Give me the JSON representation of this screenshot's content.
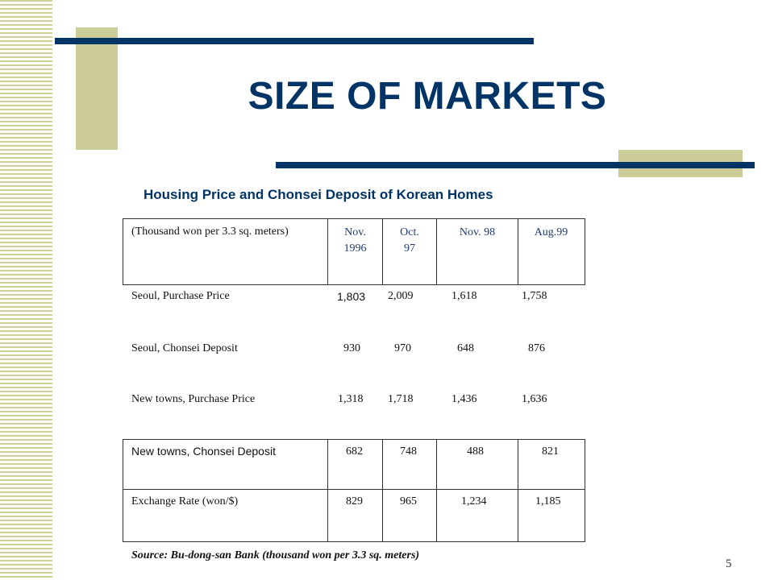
{
  "slide": {
    "title": "SIZE OF MARKETS",
    "subtitle": "Housing Price and Chonsei Deposit of Korean Homes",
    "page_number": "5",
    "source": "Source:  Bu-dong-san Bank (thousand won per 3.3 sq. meters)"
  },
  "table": {
    "header": {
      "unit": "(Thousand won per 3.3 sq. meters)",
      "col1": [
        "Nov.",
        "1996"
      ],
      "col2": [
        "Oct.",
        "97"
      ],
      "col3": "Nov. 98",
      "col4": "Aug.99"
    },
    "rows": [
      {
        "label": "Seoul, Purchase Price",
        "values": [
          "1,803",
          "2,009",
          "1,618",
          "1,758"
        ]
      },
      {
        "label": "Seoul, Chonsei Deposit",
        "values": [
          "930",
          "970",
          "648",
          "876"
        ]
      },
      {
        "label": "New towns, Purchase Price",
        "values": [
          "1,318",
          "1,718",
          "1,436",
          "1,636"
        ]
      },
      {
        "label": "New towns, Chonsei Deposit",
        "values": [
          "682",
          "748",
          "488",
          "821"
        ]
      },
      {
        "label": "Exchange Rate (won/$)",
        "values": [
          "829",
          "965",
          "1,234",
          "1,185"
        ]
      }
    ]
  },
  "colors": {
    "title": "#003366",
    "accent_bar": "#003366",
    "olive": "#cccc99"
  }
}
